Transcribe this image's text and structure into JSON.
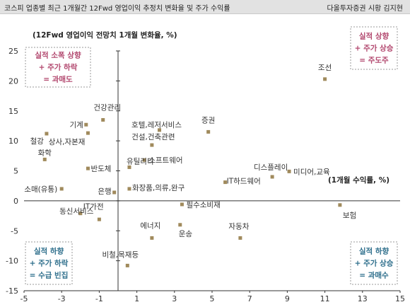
{
  "header": {
    "title": "코스피 업종별 최근 1개월간 12Fwd 영업이익 추정치 변화율 및 주가 수익률",
    "source": "다올투자증권 시황 김지현"
  },
  "colors": {
    "marker": "#a08a5c",
    "top_quadrant": "#b2476e",
    "bottom_quadrant": "#2f6f8c",
    "box_border": "#999999",
    "axis": "#333333"
  },
  "chart_data": {
    "type": "scatter",
    "title": "",
    "ylabel": "(12Fwd 영업이익 전망치 1개월 변화율, %)",
    "xlabel": "(1개월 수익률, %)",
    "xlim": [
      -5,
      15
    ],
    "ylim": [
      -15,
      25
    ],
    "xticks": [
      -5,
      -3,
      -1,
      1,
      3,
      5,
      7,
      9,
      11,
      13,
      15
    ],
    "yticks": [
      25,
      20,
      15,
      10,
      5,
      0,
      -5,
      -10,
      -15
    ],
    "grid": false,
    "points": [
      {
        "label": "조선",
        "x": 11.0,
        "y": 20.3
      },
      {
        "label": "건강관리",
        "x": -0.8,
        "y": 13.5
      },
      {
        "label": "기계",
        "x": -1.7,
        "y": 12.7
      },
      {
        "label": "상사,자본재",
        "x": -1.6,
        "y": 11.3
      },
      {
        "label": "철강",
        "x": -3.8,
        "y": 11.2
      },
      {
        "label": "호텔,레저서비스",
        "x": 2.2,
        "y": 11.8
      },
      {
        "label": "증권",
        "x": 4.8,
        "y": 11.5
      },
      {
        "label": "건설,건축관련",
        "x": 1.8,
        "y": 9.3
      },
      {
        "label": "화학",
        "x": -3.9,
        "y": 6.9
      },
      {
        "label": "유틸리티",
        "x": 0.6,
        "y": 5.6
      },
      {
        "label": "소프트웨어",
        "x": 1.4,
        "y": 6.8
      },
      {
        "label": "반도체",
        "x": -1.6,
        "y": 5.4
      },
      {
        "label": "디스플레이",
        "x": 8.2,
        "y": 4.0
      },
      {
        "label": "미디어,교육",
        "x": 9.1,
        "y": 4.9
      },
      {
        "label": "IT하드웨어",
        "x": 5.7,
        "y": 3.1
      },
      {
        "label": "은행",
        "x": -0.2,
        "y": 1.4
      },
      {
        "label": "화장품,의류,완구",
        "x": 0.6,
        "y": 2.0
      },
      {
        "label": "소매(유통)",
        "x": -3.0,
        "y": 2.0
      },
      {
        "label": "보험",
        "x": 11.8,
        "y": -0.7
      },
      {
        "label": "필수소비재",
        "x": 3.4,
        "y": -0.6
      },
      {
        "label": "IT가전",
        "x": -2.0,
        "y": -2.1
      },
      {
        "label": "동신서비스",
        "x": -1.0,
        "y": -3.1
      },
      {
        "label": "에너지",
        "x": 1.8,
        "y": -6.2
      },
      {
        "label": "운송",
        "x": 3.3,
        "y": -4.0
      },
      {
        "label": "자동차",
        "x": 6.5,
        "y": -6.2
      },
      {
        "label": "비철,목재등",
        "x": 0.5,
        "y": -10.8
      }
    ],
    "annotations": {
      "top_left": [
        "실적 소폭 상향",
        "+ 주가 하락",
        "= 과매도"
      ],
      "top_right": [
        "실적 상향",
        "+ 주가 상승",
        "= 주도주"
      ],
      "bottom_left": [
        "실적 하향",
        "+ 주가 하락",
        "= 수급 빈집"
      ],
      "bottom_right": [
        "실적 하향",
        "+ 주가 상승",
        "= 과매수"
      ]
    }
  }
}
